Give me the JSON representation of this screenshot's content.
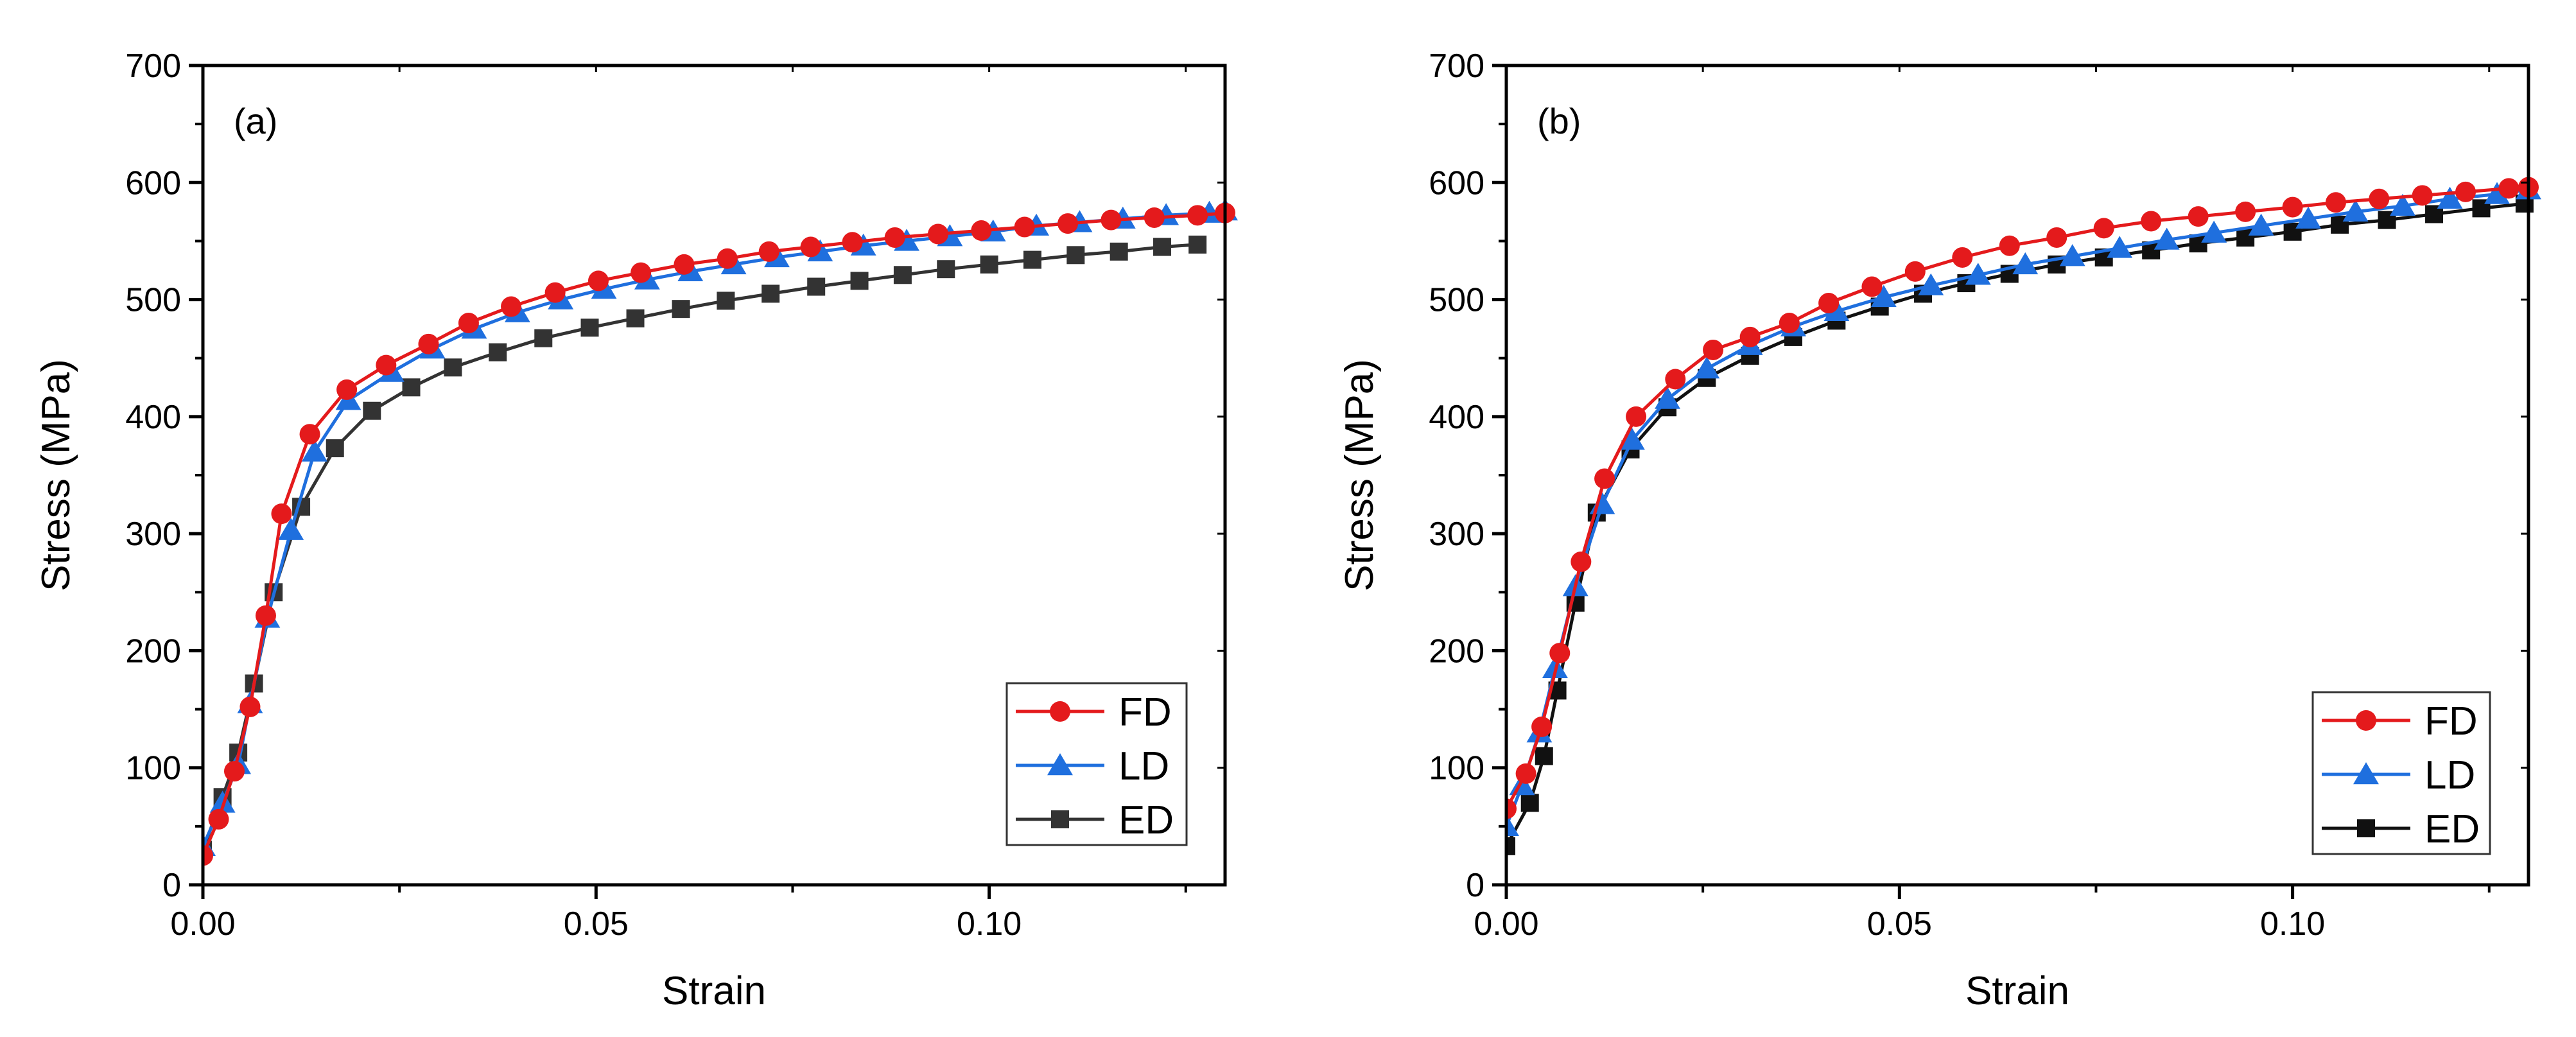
{
  "figure": {
    "description_free": true
  },
  "chart_data": [
    {
      "type": "line",
      "panel_label": "(a)",
      "xlabel": "Strain",
      "ylabel": "Stress (MPa)",
      "xlim": [
        0.0,
        0.13
      ],
      "ylim": [
        0,
        700
      ],
      "xticks": [
        0.0,
        0.05,
        0.1
      ],
      "xtick_labels": [
        "0.00",
        "0.05",
        "0.10"
      ],
      "yticks": [
        0,
        100,
        200,
        300,
        400,
        500,
        600,
        700
      ],
      "ytick_labels": [
        "0",
        "100",
        "200",
        "300",
        "400",
        "500",
        "600",
        "700"
      ],
      "legend_position": "bottom-right",
      "series": [
        {
          "name": "FD",
          "color": "#e41a1c",
          "marker": "circle",
          "x": [
            0.0,
            0.002,
            0.004,
            0.006,
            0.008,
            0.01,
            0.0136,
            0.0183,
            0.0233,
            0.0287,
            0.0338,
            0.0392,
            0.0448,
            0.0503,
            0.0557,
            0.0612,
            0.0667,
            0.072,
            0.0773,
            0.0826,
            0.088,
            0.0935,
            0.099,
            0.1045,
            0.11,
            0.1155,
            0.121,
            0.1265,
            0.13
          ],
          "y": [
            25,
            56,
            97,
            152,
            230,
            317,
            385,
            423,
            444,
            462,
            480,
            494,
            506,
            516,
            523,
            530,
            535,
            541,
            545,
            549,
            553,
            556,
            559,
            562,
            565,
            568,
            570,
            572,
            574
          ]
        },
        {
          "name": "LD",
          "color": "#1f6fde",
          "marker": "triangle",
          "x": [
            0.0,
            0.0025,
            0.0045,
            0.006,
            0.0082,
            0.0112,
            0.0142,
            0.0185,
            0.024,
            0.0292,
            0.0345,
            0.04,
            0.0455,
            0.051,
            0.0565,
            0.062,
            0.0675,
            0.073,
            0.0785,
            0.084,
            0.0895,
            0.095,
            0.1005,
            0.106,
            0.1115,
            0.117,
            0.1225,
            0.128,
            0.13
          ],
          "y": [
            33,
            70,
            103,
            155,
            228,
            303,
            370,
            414,
            438,
            458,
            475,
            489,
            500,
            509,
            517,
            524,
            530,
            536,
            541,
            546,
            550,
            554,
            558,
            563,
            566,
            569,
            572,
            574,
            576
          ]
        },
        {
          "name": "ED",
          "color": "#333333",
          "marker": "square",
          "x": [
            0.0,
            0.0025,
            0.0045,
            0.0065,
            0.009,
            0.0125,
            0.0168,
            0.0215,
            0.0265,
            0.0318,
            0.0375,
            0.0433,
            0.0492,
            0.055,
            0.0608,
            0.0665,
            0.0722,
            0.078,
            0.0835,
            0.089,
            0.0945,
            0.1,
            0.1055,
            0.111,
            0.1165,
            0.122,
            0.1265
          ],
          "y": [
            30,
            75,
            113,
            172,
            250,
            323,
            373,
            405,
            425,
            442,
            455,
            467,
            476,
            484,
            492,
            499,
            505,
            511,
            516,
            521,
            526,
            530,
            534,
            538,
            541,
            545,
            547
          ]
        }
      ]
    },
    {
      "type": "line",
      "panel_label": "(b)",
      "xlabel": "Strain",
      "ylabel": "Stress (MPa)",
      "xlim": [
        0.0,
        0.13
      ],
      "ylim": [
        0,
        700
      ],
      "xticks": [
        0.0,
        0.05,
        0.1
      ],
      "xtick_labels": [
        "0.00",
        "0.05",
        "0.10"
      ],
      "yticks": [
        0,
        100,
        200,
        300,
        400,
        500,
        600,
        700
      ],
      "ytick_labels": [
        "0",
        "100",
        "200",
        "300",
        "400",
        "500",
        "600",
        "700"
      ],
      "legend_position": "bottom-right",
      "series": [
        {
          "name": "FD",
          "color": "#e41a1c",
          "marker": "circle",
          "x": [
            0.0,
            0.0025,
            0.0045,
            0.0068,
            0.0095,
            0.0125,
            0.0165,
            0.0215,
            0.0263,
            0.031,
            0.036,
            0.041,
            0.0465,
            0.052,
            0.058,
            0.064,
            0.07,
            0.076,
            0.082,
            0.088,
            0.094,
            0.1,
            0.1055,
            0.111,
            0.1165,
            0.122,
            0.1275,
            0.13
          ],
          "y": [
            65,
            95,
            135,
            198,
            276,
            347,
            400,
            432,
            457,
            468,
            480,
            497,
            511,
            524,
            536,
            546,
            553,
            561,
            567,
            571,
            575,
            579,
            583,
            586,
            589,
            592,
            595,
            596
          ]
        },
        {
          "name": "LD",
          "color": "#1f6fde",
          "marker": "triangle",
          "x": [
            0.0,
            0.002,
            0.0042,
            0.0062,
            0.0088,
            0.0122,
            0.016,
            0.0205,
            0.0255,
            0.031,
            0.0365,
            0.042,
            0.048,
            0.054,
            0.06,
            0.066,
            0.072,
            0.078,
            0.084,
            0.09,
            0.096,
            0.102,
            0.108,
            0.114,
            0.12,
            0.126,
            0.13
          ],
          "y": [
            50,
            85,
            130,
            185,
            255,
            325,
            380,
            415,
            441,
            461,
            477,
            490,
            502,
            512,
            521,
            530,
            537,
            544,
            551,
            557,
            563,
            569,
            575,
            580,
            586,
            590,
            594
          ]
        },
        {
          "name": "ED",
          "color": "#111111",
          "marker": "square",
          "x": [
            0.0,
            0.003,
            0.0048,
            0.0065,
            0.0088,
            0.0115,
            0.0158,
            0.0205,
            0.0255,
            0.031,
            0.0365,
            0.042,
            0.0475,
            0.053,
            0.0585,
            0.064,
            0.07,
            0.076,
            0.082,
            0.088,
            0.094,
            0.1,
            0.106,
            0.112,
            0.118,
            0.124,
            0.1295
          ],
          "y": [
            33,
            70,
            110,
            166,
            241,
            318,
            372,
            408,
            433,
            452,
            468,
            482,
            494,
            505,
            514,
            522,
            530,
            536,
            542,
            548,
            553,
            558,
            564,
            568,
            573,
            578,
            582
          ]
        }
      ]
    }
  ]
}
